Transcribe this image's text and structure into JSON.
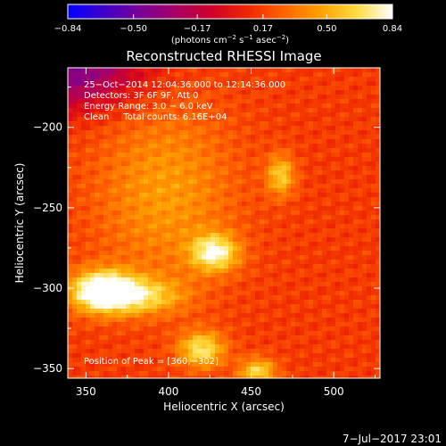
{
  "chart_data": {
    "type": "heatmap",
    "title": "Reconstructed RHESSI Image",
    "xlabel": "Heliocentric X (arcsec)",
    "ylabel": "Heliocentric Y (arcsec)",
    "xlim": [
      339,
      528
    ],
    "ylim": [
      -356,
      -163
    ],
    "x_ticks": [
      350,
      400,
      450,
      500
    ],
    "y_ticks": [
      -200,
      -250,
      -300,
      -350
    ],
    "x_tick_labels": [
      "350",
      "400",
      "450",
      "500"
    ],
    "y_tick_labels": [
      "−200",
      "−250",
      "−300",
      "−350"
    ],
    "colorbar": {
      "ticks": [
        -0.84,
        -0.5,
        -0.17,
        0.17,
        0.5,
        0.84
      ],
      "tick_labels": [
        "−0.84",
        "−0.50",
        "−0.17",
        "0.17",
        "0.50",
        "0.84"
      ],
      "label_parts": [
        "(photons cm",
        "−2",
        " s",
        "−1",
        " asec",
        "−2",
        ")"
      ],
      "range": [
        -0.84,
        0.84
      ]
    },
    "colormap": [
      "#0000ff",
      "#4000c8",
      "#780096",
      "#a80064",
      "#d00028",
      "#f02800",
      "#ff6400",
      "#ffa000",
      "#ffdc40",
      "#ffffff"
    ],
    "annotations": [
      "25−Oct−2014 12:04:36.000 to 12:14:36.000",
      "Detectors: 3F 6F 9F, Att 0",
      "Energy Range: 3.0 − 6.0 keV",
      "Clean     Total counts: 6.16E+04"
    ],
    "peak_label": "Position of Peak = [360,−302]",
    "peak": [
      360,
      -302
    ],
    "sources": [
      {
        "x": 360,
        "y": -302,
        "amp": 0.84,
        "sx": 14,
        "sy": 9
      },
      {
        "x": 385,
        "y": -305,
        "amp": 0.42,
        "sx": 18,
        "sy": 8
      },
      {
        "x": 428,
        "y": -278,
        "amp": 0.62,
        "sx": 10,
        "sy": 8
      },
      {
        "x": 420,
        "y": -338,
        "amp": 0.55,
        "sx": 10,
        "sy": 8
      },
      {
        "x": 454,
        "y": -352,
        "amp": 0.5,
        "sx": 8,
        "sy": 6
      },
      {
        "x": 468,
        "y": -230,
        "amp": 0.45,
        "sx": 6,
        "sy": 9
      },
      {
        "x": 398,
        "y": -240,
        "amp": 0.3,
        "sx": 30,
        "sy": 40
      }
    ],
    "background": {
      "level": 0.15,
      "negative_corner": [
        339,
        -163
      ],
      "negative_level": -0.45
    }
  },
  "footer": {
    "date": "7−Jul−2017 23:01"
  }
}
